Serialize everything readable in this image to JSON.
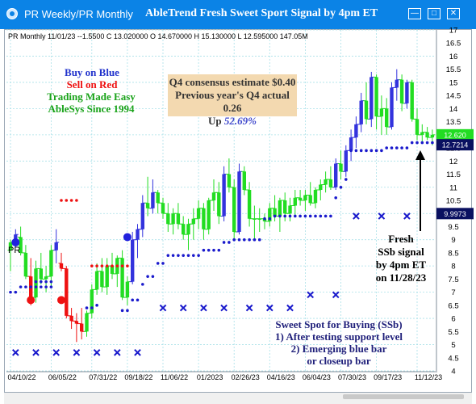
{
  "window": {
    "tab_title": "PR Weekly/PR Monthly",
    "title": "AbleTrend Fresh Sweet Sport Signal by 4pm ET"
  },
  "chart_info": "PR  Monthly 11/01/23 --1.5500 C 13.020000 O 14.670000 H 15.130000 L 12.595000 147.05M",
  "symbol_label": "PR",
  "legend": {
    "buy": "Buy on Blue",
    "sell": "Sell on Red",
    "easy": "Trading Made Easy",
    "since": "AbleSys Since 1994"
  },
  "consensus": {
    "line1": "Q4 consensus estimate $0.40",
    "line2": "Previous year's Q4 actual 0.26",
    "up_label": "Up",
    "up_value": "52.69%"
  },
  "fresh_signal": {
    "lines": [
      "Fresh",
      "SSb signal",
      "by 4pm ET",
      "on 11/28/23"
    ]
  },
  "ssb_note": {
    "title": "Sweet Spot for Buying (SSb)",
    "line1": "1) After testing support level",
    "line2": "2) Emerging blue bar",
    "line3": "or closeup bar"
  },
  "price_tags": {
    "upper": "12.620",
    "current": "12.7214",
    "lower": "9.9973"
  },
  "colors": {
    "titlebar": "#0b83e6",
    "blue_bar": "#3333dd",
    "green_bar": "#22dd22",
    "red_bar": "#ee1111",
    "support_marker": "#1a1acc",
    "grid": "#a8e0e8"
  },
  "chart_data": {
    "type": "candlestick",
    "y_axis_ticks": [
      4,
      4.5,
      5,
      5.5,
      6,
      6.5,
      7,
      7.5,
      8,
      8.5,
      9,
      9.5,
      10,
      10.5,
      11,
      11.5,
      12,
      12.5,
      13,
      13.5,
      14,
      14.5,
      15,
      15.5,
      16,
      16.5,
      17
    ],
    "ylim": [
      4,
      17
    ],
    "x_axis_labels": [
      "04/10/22",
      "06/05/22",
      "07/31/22",
      "09/18/22",
      "11/06/22",
      "01/2023",
      "02/26/23",
      "04/16/23",
      "06/04/23",
      "07/30/23",
      "09/17/23",
      "11/12/23"
    ],
    "x_label_index": [
      0,
      8,
      16,
      23,
      30,
      37,
      44,
      51,
      58,
      65,
      72,
      80
    ],
    "bars": [
      {
        "i": 0,
        "o": 8.6,
        "h": 9.0,
        "l": 7.8,
        "c": 8.9,
        "col": "g"
      },
      {
        "i": 1,
        "o": 8.9,
        "h": 9.4,
        "l": 8.7,
        "c": 9.2,
        "col": "b"
      },
      {
        "i": 2,
        "o": 9.1,
        "h": 9.5,
        "l": 8.4,
        "c": 8.5,
        "col": "g"
      },
      {
        "i": 3,
        "o": 8.5,
        "h": 8.8,
        "l": 7.5,
        "c": 7.6,
        "col": "g"
      },
      {
        "i": 4,
        "o": 7.6,
        "h": 8.3,
        "l": 6.5,
        "c": 6.7,
        "col": "r"
      },
      {
        "i": 5,
        "o": 6.8,
        "h": 8.2,
        "l": 6.6,
        "c": 7.9,
        "col": "g"
      },
      {
        "i": 6,
        "o": 7.9,
        "h": 8.5,
        "l": 7.3,
        "c": 7.5,
        "col": "g"
      },
      {
        "i": 7,
        "o": 7.5,
        "h": 8.0,
        "l": 7.0,
        "c": 7.6,
        "col": "g"
      },
      {
        "i": 8,
        "o": 7.6,
        "h": 8.8,
        "l": 7.2,
        "c": 8.6,
        "col": "g"
      },
      {
        "i": 9,
        "o": 8.6,
        "h": 9.4,
        "l": 8.1,
        "c": 8.9,
        "col": "b"
      },
      {
        "i": 10,
        "o": 8.1,
        "h": 8.5,
        "l": 7.8,
        "c": 7.9,
        "col": "r"
      },
      {
        "i": 11,
        "o": 7.9,
        "h": 8.0,
        "l": 6.0,
        "c": 6.1,
        "col": "r"
      },
      {
        "i": 12,
        "o": 6.1,
        "h": 6.4,
        "l": 5.6,
        "c": 5.9,
        "col": "r"
      },
      {
        "i": 13,
        "o": 5.9,
        "h": 6.2,
        "l": 5.1,
        "c": 5.8,
        "col": "r"
      },
      {
        "i": 14,
        "o": 5.8,
        "h": 6.4,
        "l": 5.2,
        "c": 5.5,
        "col": "r"
      },
      {
        "i": 15,
        "o": 5.5,
        "h": 6.3,
        "l": 5.3,
        "c": 6.2,
        "col": "g"
      },
      {
        "i": 16,
        "o": 6.2,
        "h": 7.3,
        "l": 6.0,
        "c": 7.1,
        "col": "g"
      },
      {
        "i": 17,
        "o": 7.1,
        "h": 8.1,
        "l": 6.9,
        "c": 7.8,
        "col": "g"
      },
      {
        "i": 18,
        "o": 7.8,
        "h": 8.3,
        "l": 7.0,
        "c": 7.2,
        "col": "g"
      },
      {
        "i": 19,
        "o": 7.2,
        "h": 8.3,
        "l": 6.9,
        "c": 8.0,
        "col": "g"
      },
      {
        "i": 20,
        "o": 8.0,
        "h": 8.5,
        "l": 7.5,
        "c": 7.7,
        "col": "g"
      },
      {
        "i": 21,
        "o": 7.7,
        "h": 8.4,
        "l": 7.2,
        "c": 8.3,
        "col": "g"
      },
      {
        "i": 22,
        "o": 8.3,
        "h": 8.6,
        "l": 6.7,
        "c": 6.8,
        "col": "g"
      },
      {
        "i": 23,
        "o": 6.8,
        "h": 7.6,
        "l": 6.5,
        "c": 7.4,
        "col": "g"
      },
      {
        "i": 24,
        "o": 7.4,
        "h": 9.3,
        "l": 7.3,
        "c": 9.0,
        "col": "b"
      },
      {
        "i": 25,
        "o": 9.0,
        "h": 9.6,
        "l": 8.3,
        "c": 9.4,
        "col": "b"
      },
      {
        "i": 26,
        "o": 9.4,
        "h": 10.7,
        "l": 9.1,
        "c": 10.4,
        "col": "b"
      },
      {
        "i": 27,
        "o": 10.4,
        "h": 11.4,
        "l": 9.9,
        "c": 10.2,
        "col": "g"
      },
      {
        "i": 28,
        "o": 10.2,
        "h": 11.3,
        "l": 10.0,
        "c": 10.8,
        "col": "b"
      },
      {
        "i": 29,
        "o": 10.8,
        "h": 10.9,
        "l": 10.0,
        "c": 10.4,
        "col": "g"
      },
      {
        "i": 30,
        "o": 10.4,
        "h": 10.6,
        "l": 9.8,
        "c": 10.0,
        "col": "g"
      },
      {
        "i": 31,
        "o": 10.0,
        "h": 10.4,
        "l": 9.3,
        "c": 9.6,
        "col": "g"
      },
      {
        "i": 32,
        "o": 9.6,
        "h": 10.2,
        "l": 9.2,
        "c": 10.0,
        "col": "g"
      },
      {
        "i": 33,
        "o": 10.0,
        "h": 10.4,
        "l": 9.4,
        "c": 9.6,
        "col": "g"
      },
      {
        "i": 34,
        "o": 9.6,
        "h": 9.9,
        "l": 9.0,
        "c": 9.2,
        "col": "g"
      },
      {
        "i": 35,
        "o": 9.2,
        "h": 9.8,
        "l": 8.6,
        "c": 9.6,
        "col": "g"
      },
      {
        "i": 36,
        "o": 9.6,
        "h": 10.2,
        "l": 9.0,
        "c": 9.8,
        "col": "g"
      },
      {
        "i": 37,
        "o": 9.8,
        "h": 10.5,
        "l": 9.4,
        "c": 10.2,
        "col": "g"
      },
      {
        "i": 38,
        "o": 10.2,
        "h": 10.4,
        "l": 9.0,
        "c": 9.4,
        "col": "g"
      },
      {
        "i": 39,
        "o": 9.4,
        "h": 10.6,
        "l": 9.2,
        "c": 10.5,
        "col": "g"
      },
      {
        "i": 40,
        "o": 10.5,
        "h": 11.3,
        "l": 10.1,
        "c": 10.8,
        "col": "g"
      },
      {
        "i": 41,
        "o": 10.8,
        "h": 11.2,
        "l": 9.6,
        "c": 9.9,
        "col": "g"
      },
      {
        "i": 42,
        "o": 9.9,
        "h": 11.8,
        "l": 9.7,
        "c": 11.5,
        "col": "b"
      },
      {
        "i": 43,
        "o": 11.5,
        "h": 12.1,
        "l": 10.8,
        "c": 11.0,
        "col": "g"
      },
      {
        "i": 44,
        "o": 11.0,
        "h": 11.3,
        "l": 9.0,
        "c": 9.3,
        "col": "g"
      },
      {
        "i": 45,
        "o": 9.3,
        "h": 11.9,
        "l": 9.2,
        "c": 11.6,
        "col": "b"
      },
      {
        "i": 46,
        "o": 11.6,
        "h": 11.8,
        "l": 10.7,
        "c": 10.9,
        "col": "g"
      },
      {
        "i": 47,
        "o": 10.9,
        "h": 11.2,
        "l": 9.5,
        "c": 9.8,
        "col": "g"
      },
      {
        "i": 48,
        "o": 9.8,
        "h": 10.3,
        "l": 9.0,
        "c": 9.8,
        "col": "g"
      },
      {
        "i": 49,
        "o": 9.8,
        "h": 10.2,
        "l": 9.3,
        "c": 9.8,
        "col": "g"
      },
      {
        "i": 50,
        "o": 9.8,
        "h": 10.0,
        "l": 9.4,
        "c": 9.7,
        "col": "g"
      },
      {
        "i": 51,
        "o": 9.7,
        "h": 10.4,
        "l": 9.5,
        "c": 10.2,
        "col": "g"
      },
      {
        "i": 52,
        "o": 10.2,
        "h": 10.7,
        "l": 9.7,
        "c": 9.9,
        "col": "g"
      },
      {
        "i": 53,
        "o": 9.9,
        "h": 10.6,
        "l": 9.3,
        "c": 10.5,
        "col": "g"
      },
      {
        "i": 54,
        "o": 10.5,
        "h": 10.8,
        "l": 9.7,
        "c": 10.0,
        "col": "g"
      },
      {
        "i": 55,
        "o": 10.0,
        "h": 10.6,
        "l": 9.7,
        "c": 10.3,
        "col": "g"
      },
      {
        "i": 56,
        "o": 10.3,
        "h": 10.9,
        "l": 9.9,
        "c": 10.6,
        "col": "g"
      },
      {
        "i": 57,
        "o": 10.6,
        "h": 10.9,
        "l": 10.3,
        "c": 10.5,
        "col": "g"
      },
      {
        "i": 58,
        "o": 10.5,
        "h": 10.9,
        "l": 10.1,
        "c": 10.7,
        "col": "g"
      },
      {
        "i": 59,
        "o": 10.7,
        "h": 11.2,
        "l": 10.3,
        "c": 10.4,
        "col": "g"
      },
      {
        "i": 60,
        "o": 10.4,
        "h": 11.0,
        "l": 10.2,
        "c": 10.9,
        "col": "g"
      },
      {
        "i": 61,
        "o": 10.9,
        "h": 11.3,
        "l": 10.5,
        "c": 11.1,
        "col": "g"
      },
      {
        "i": 62,
        "o": 11.1,
        "h": 11.6,
        "l": 10.8,
        "c": 11.3,
        "col": "g"
      },
      {
        "i": 63,
        "o": 11.3,
        "h": 11.8,
        "l": 10.9,
        "c": 11.0,
        "col": "g"
      },
      {
        "i": 64,
        "o": 11.0,
        "h": 12.1,
        "l": 10.9,
        "c": 11.9,
        "col": "b"
      },
      {
        "i": 65,
        "o": 11.9,
        "h": 12.4,
        "l": 11.3,
        "c": 11.6,
        "col": "g"
      },
      {
        "i": 66,
        "o": 11.6,
        "h": 12.6,
        "l": 11.4,
        "c": 12.4,
        "col": "b"
      },
      {
        "i": 67,
        "o": 12.4,
        "h": 13.2,
        "l": 12.0,
        "c": 12.9,
        "col": "b"
      },
      {
        "i": 68,
        "o": 12.9,
        "h": 13.7,
        "l": 12.5,
        "c": 13.4,
        "col": "b"
      },
      {
        "i": 69,
        "o": 13.4,
        "h": 14.6,
        "l": 13.1,
        "c": 14.3,
        "col": "b"
      },
      {
        "i": 70,
        "o": 14.3,
        "h": 15.0,
        "l": 13.4,
        "c": 13.6,
        "col": "g"
      },
      {
        "i": 71,
        "o": 13.6,
        "h": 15.4,
        "l": 13.3,
        "c": 15.2,
        "col": "b"
      },
      {
        "i": 72,
        "o": 15.2,
        "h": 15.3,
        "l": 13.2,
        "c": 13.7,
        "col": "g"
      },
      {
        "i": 73,
        "o": 13.7,
        "h": 14.5,
        "l": 13.0,
        "c": 14.0,
        "col": "g"
      },
      {
        "i": 74,
        "o": 14.0,
        "h": 14.4,
        "l": 13.0,
        "c": 13.3,
        "col": "g"
      },
      {
        "i": 75,
        "o": 13.3,
        "h": 15.0,
        "l": 13.2,
        "c": 14.8,
        "col": "b"
      },
      {
        "i": 76,
        "o": 14.8,
        "h": 15.5,
        "l": 14.3,
        "c": 15.1,
        "col": "b"
      },
      {
        "i": 77,
        "o": 15.1,
        "h": 15.3,
        "l": 13.9,
        "c": 14.2,
        "col": "g"
      },
      {
        "i": 78,
        "o": 14.2,
        "h": 15.1,
        "l": 14.0,
        "c": 15.0,
        "col": "b"
      },
      {
        "i": 79,
        "o": 15.0,
        "h": 15.1,
        "l": 13.5,
        "c": 13.6,
        "col": "g"
      },
      {
        "i": 80,
        "o": 13.6,
        "h": 14.0,
        "l": 12.8,
        "c": 13.0,
        "col": "g"
      },
      {
        "i": 81,
        "o": 13.0,
        "h": 13.4,
        "l": 12.7,
        "c": 13.1,
        "col": "g"
      },
      {
        "i": 82,
        "o": 13.1,
        "h": 13.3,
        "l": 12.8,
        "c": 12.9,
        "col": "g"
      },
      {
        "i": 83,
        "o": 12.9,
        "h": 13.2,
        "l": 12.6,
        "c": 13.0,
        "col": "g"
      }
    ],
    "support_dots": [
      {
        "i0": 0,
        "i1": 1,
        "y": 7.0
      },
      {
        "i0": 2,
        "i1": 8,
        "y": 7.2
      },
      {
        "i0": 5,
        "i1": 8,
        "y": 7.4
      },
      {
        "i0": 15,
        "i1": 16,
        "y": 6.4
      },
      {
        "i0": 17,
        "i1": 17,
        "y": 6.5
      },
      {
        "i0": 22,
        "i1": 23,
        "y": 6.3
      },
      {
        "i0": 24,
        "i1": 25,
        "y": 6.7
      },
      {
        "i0": 26,
        "i1": 26,
        "y": 7.3
      },
      {
        "i0": 27,
        "i1": 28,
        "y": 7.6
      },
      {
        "i0": 29,
        "i1": 30,
        "y": 8.1
      },
      {
        "i0": 31,
        "i1": 37,
        "y": 8.4
      },
      {
        "i0": 38,
        "i1": 41,
        "y": 8.6
      },
      {
        "i0": 42,
        "i1": 43,
        "y": 8.9
      },
      {
        "i0": 44,
        "i1": 49,
        "y": 9.0
      },
      {
        "i0": 50,
        "i1": 51,
        "y": 9.8
      },
      {
        "i0": 52,
        "i1": 63,
        "y": 9.9
      },
      {
        "i0": 64,
        "i1": 64,
        "y": 10.6
      },
      {
        "i0": 65,
        "i1": 65,
        "y": 11.0
      },
      {
        "i0": 66,
        "i1": 66,
        "y": 11.3
      },
      {
        "i0": 67,
        "i1": 73,
        "y": 12.4
      },
      {
        "i0": 74,
        "i1": 78,
        "y": 12.5
      },
      {
        "i0": 79,
        "i1": 83,
        "y": 12.7
      }
    ],
    "resistance_dots": [
      {
        "i0": 10,
        "i1": 13,
        "y": 10.5
      },
      {
        "i0": 16,
        "i1": 23,
        "y": 8.0
      }
    ],
    "ssb_markers": [
      {
        "i": 1,
        "y": 4.7
      },
      {
        "i": 5,
        "y": 4.7
      },
      {
        "i": 9,
        "y": 4.7
      },
      {
        "i": 13,
        "y": 4.7
      },
      {
        "i": 17,
        "y": 4.7
      },
      {
        "i": 21,
        "y": 4.7
      },
      {
        "i": 25,
        "y": 4.7
      },
      {
        "i": 30,
        "y": 6.4
      },
      {
        "i": 34,
        "y": 6.4
      },
      {
        "i": 38,
        "y": 6.4
      },
      {
        "i": 42,
        "y": 6.4
      },
      {
        "i": 47,
        "y": 6.4
      },
      {
        "i": 51,
        "y": 6.4
      },
      {
        "i": 55,
        "y": 6.4
      },
      {
        "i": 59,
        "y": 6.9
      },
      {
        "i": 64,
        "y": 6.9
      },
      {
        "i": 68,
        "y": 9.9
      },
      {
        "i": 73,
        "y": 9.9
      },
      {
        "i": 78,
        "y": 9.9
      }
    ],
    "big_dots": [
      {
        "i": 1,
        "y": 8.9,
        "col": "b"
      },
      {
        "i": 4,
        "y": 6.7,
        "col": "r"
      },
      {
        "i": 10,
        "y": 6.7,
        "col": "r"
      },
      {
        "i": 23,
        "y": 9.1,
        "col": "b"
      }
    ]
  }
}
